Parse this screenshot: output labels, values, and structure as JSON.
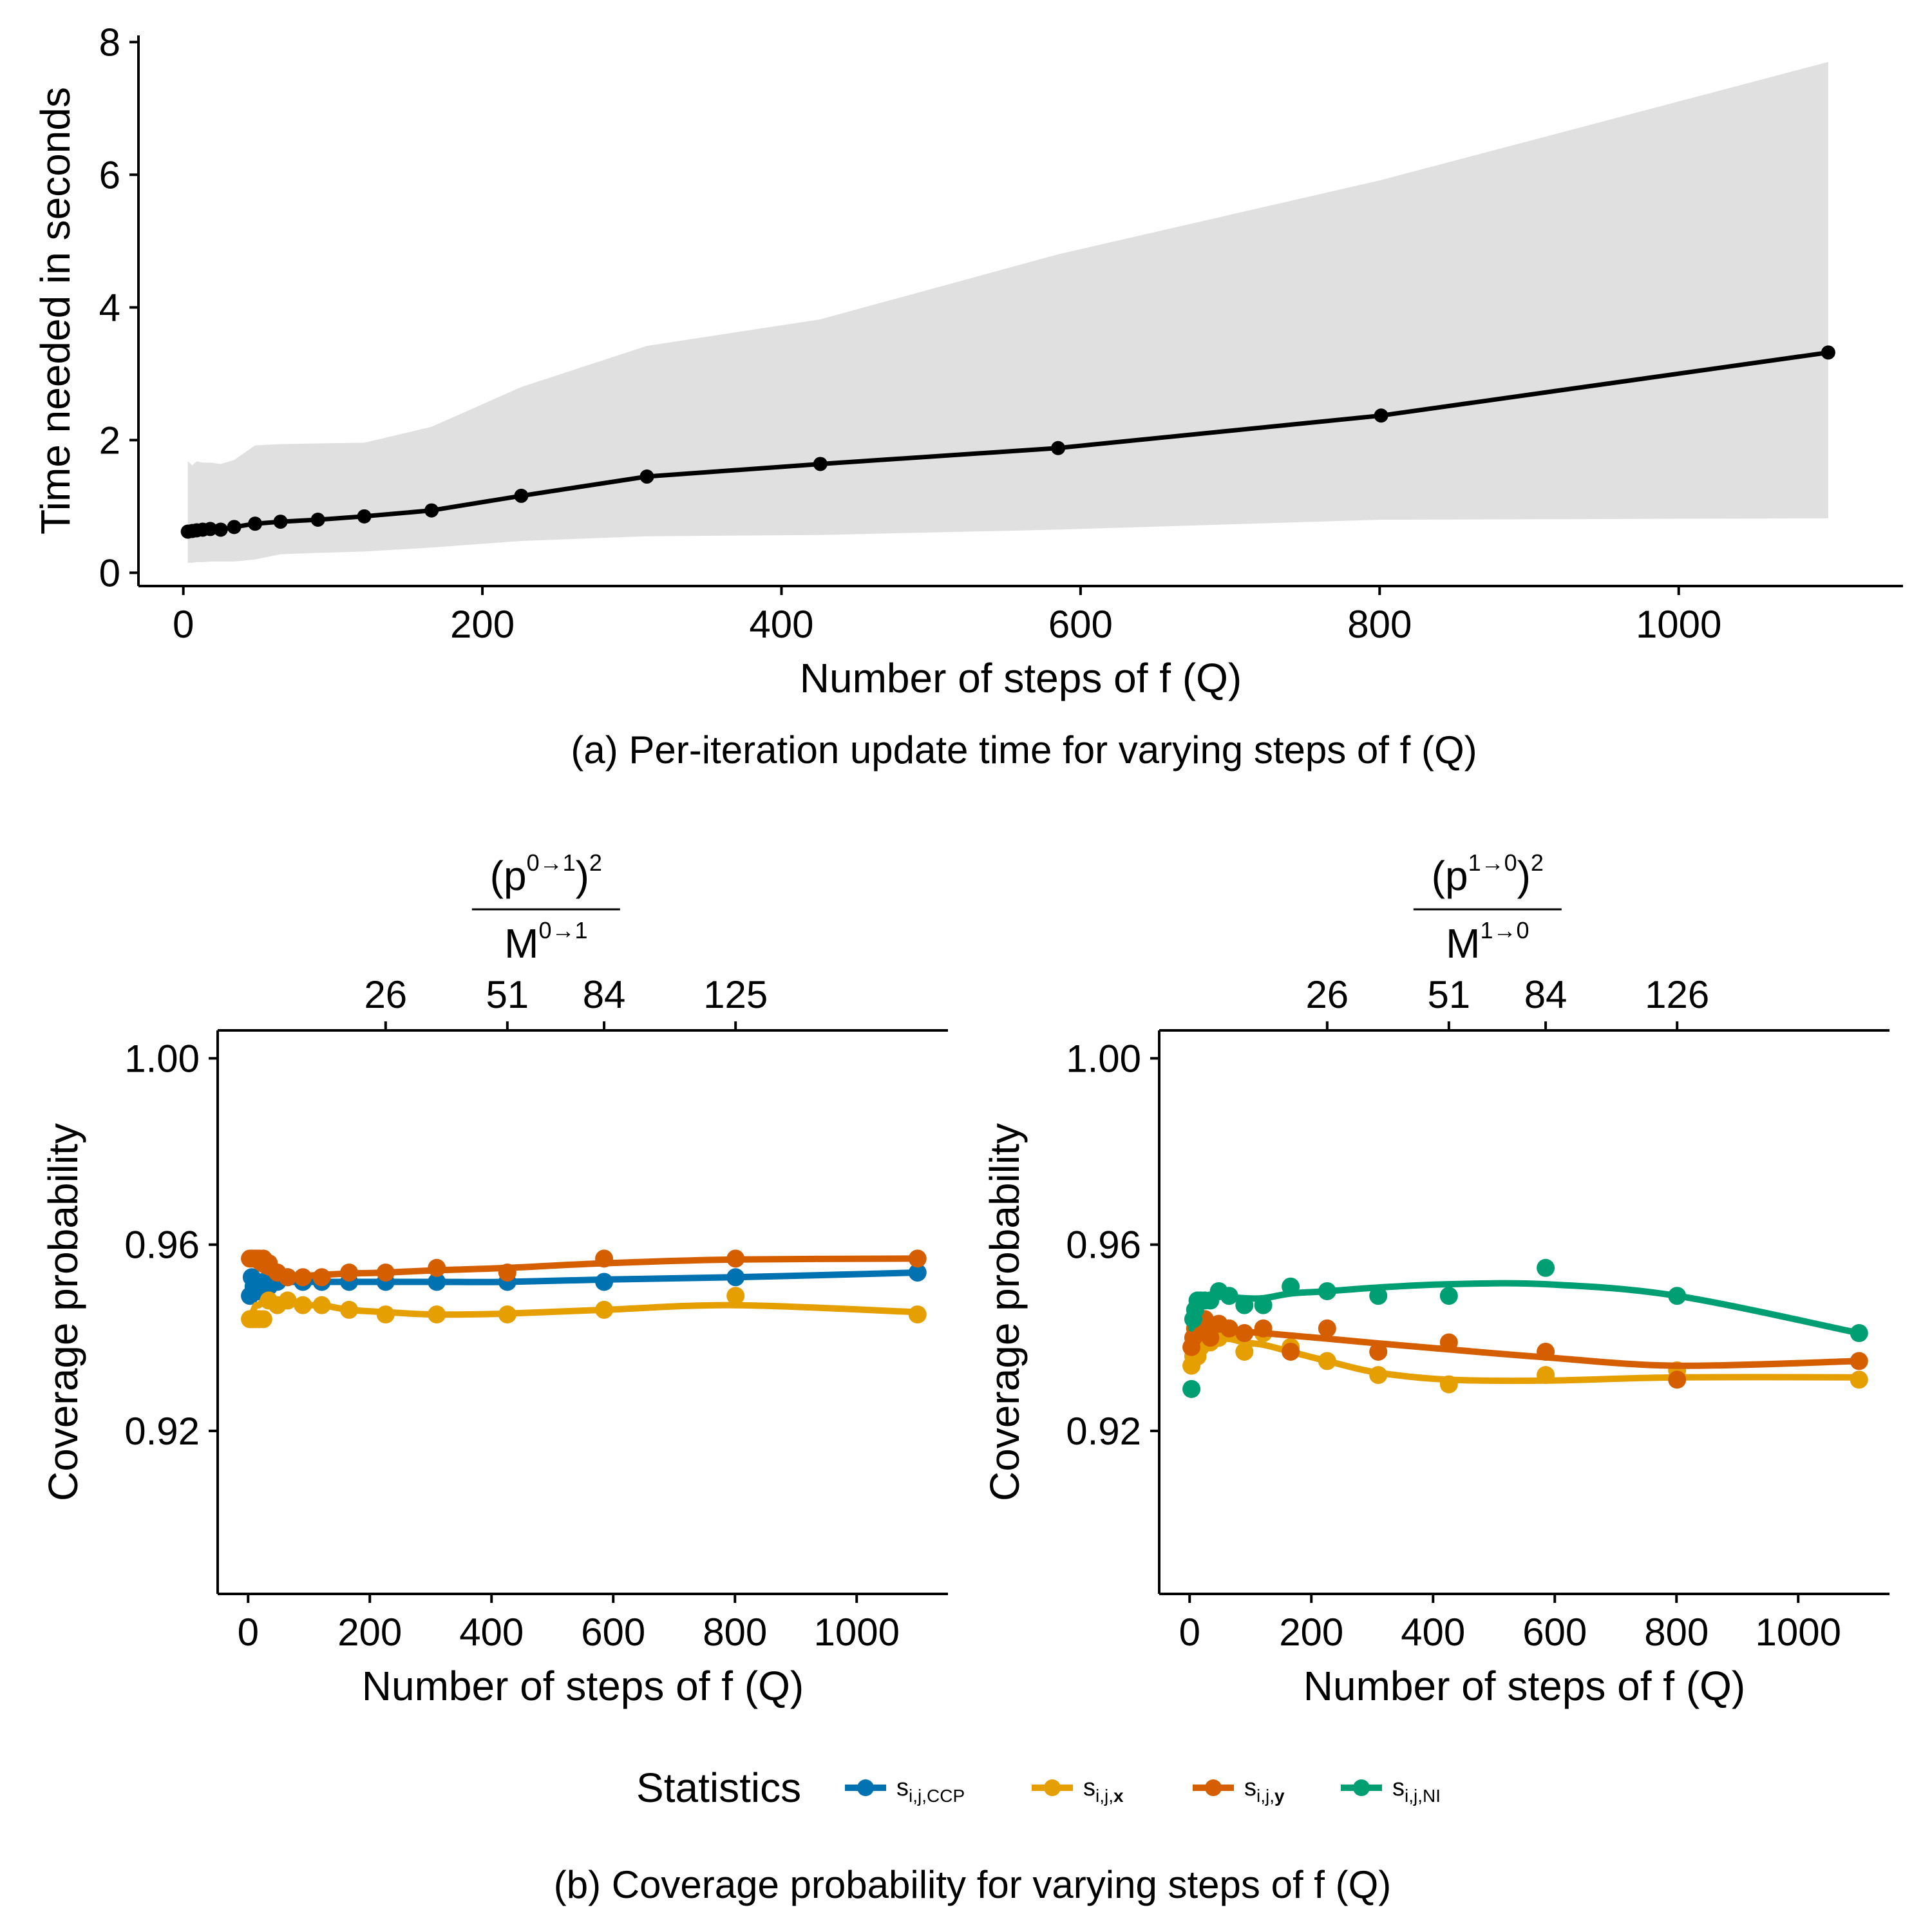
{
  "colors": {
    "ccp": "#0072B2",
    "x": "#E69F00",
    "y": "#D55E00",
    "ni": "#009E73",
    "line": "#000000",
    "ribbon": "#E0E0E0"
  },
  "chart_data": [
    {
      "id": "a",
      "type": "line",
      "xlabel": "Number of steps of f (Q)",
      "ylabel": "Time needed in seconds",
      "caption": "(a) Per-iteration update time for varying steps of f (Q)",
      "xlim": [
        -30,
        1150
      ],
      "ylim": [
        -0.2,
        8.1
      ],
      "xticks": [
        0,
        200,
        400,
        600,
        800,
        1000
      ],
      "yticks": [
        0,
        2,
        4,
        6,
        8
      ],
      "series": [
        {
          "name": "mean",
          "x": [
            3,
            6,
            9,
            13,
            18,
            25,
            34,
            48,
            65,
            90,
            121,
            166,
            226,
            310,
            426,
            585,
            801,
            1100
          ],
          "y": [
            0.62,
            0.63,
            0.64,
            0.65,
            0.66,
            0.65,
            0.69,
            0.74,
            0.77,
            0.8,
            0.85,
            0.94,
            1.16,
            1.45,
            1.64,
            1.88,
            2.37,
            3.32
          ]
        }
      ],
      "ribbon": {
        "x": [
          3,
          6,
          9,
          13,
          18,
          25,
          34,
          48,
          65,
          90,
          121,
          166,
          226,
          310,
          426,
          585,
          801,
          1100
        ],
        "lower": [
          0.15,
          0.15,
          0.16,
          0.16,
          0.17,
          0.17,
          0.17,
          0.2,
          0.28,
          0.3,
          0.32,
          0.38,
          0.48,
          0.55,
          0.57,
          0.65,
          0.8,
          0.82
        ],
        "upper": [
          1.68,
          1.62,
          1.68,
          1.66,
          1.66,
          1.64,
          1.7,
          1.92,
          1.94,
          1.95,
          1.96,
          2.2,
          2.8,
          3.42,
          3.82,
          4.8,
          5.92,
          7.7
        ]
      }
    },
    {
      "id": "b-left",
      "type": "scatter",
      "xlabel": "Number of steps of f (Q)",
      "ylabel": "Coverage probability",
      "top_axis_ticks": [
        "26",
        "51",
        "84",
        "125"
      ],
      "top_axis_ticks_x": [
        226,
        426,
        585,
        801
      ],
      "xlim": [
        -50,
        1150
      ],
      "ylim": [
        0.885,
        1.006
      ],
      "xticks": [
        0,
        200,
        400,
        600,
        800,
        1000
      ],
      "yticks": [
        1.0,
        0.96,
        0.92
      ],
      "ytick_labels": [
        "1.00",
        "0.96",
        "0.92"
      ],
      "series": [
        {
          "name": "ccp",
          "x": [
            3,
            6,
            9,
            13,
            18,
            25,
            34,
            48,
            65,
            90,
            121,
            166,
            226,
            310,
            426,
            585,
            801,
            1100
          ],
          "y": [
            0.949,
            0.953,
            0.951,
            0.952,
            0.95,
            0.952,
            0.951,
            0.952,
            0.953,
            0.952,
            0.952,
            0.952,
            0.952,
            0.952,
            0.952,
            0.952,
            0.953,
            0.954
          ],
          "fit": [
            0.951,
            0.951,
            0.952,
            0.952,
            0.952,
            0.952,
            0.952,
            0.952,
            0.952,
            0.952,
            0.952,
            0.952,
            0.952,
            0.952,
            0.952,
            0.9525,
            0.953,
            0.954
          ]
        },
        {
          "name": "x",
          "x": [
            3,
            6,
            9,
            13,
            18,
            25,
            34,
            48,
            65,
            90,
            121,
            166,
            226,
            310,
            426,
            585,
            801,
            1100
          ],
          "y": [
            0.944,
            0.944,
            0.944,
            0.944,
            0.944,
            0.944,
            0.948,
            0.947,
            0.948,
            0.947,
            0.947,
            0.946,
            0.945,
            0.945,
            0.945,
            0.946,
            0.949,
            0.945
          ],
          "fit": [
            0.944,
            0.945,
            0.946,
            0.947,
            0.947,
            0.948,
            0.948,
            0.948,
            0.948,
            0.947,
            0.947,
            0.946,
            0.9455,
            0.945,
            0.9452,
            0.946,
            0.947,
            0.9455
          ]
        },
        {
          "name": "y",
          "x": [
            3,
            6,
            9,
            13,
            18,
            25,
            34,
            48,
            65,
            90,
            121,
            166,
            226,
            310,
            426,
            585,
            801,
            1100
          ],
          "y": [
            0.957,
            0.957,
            0.957,
            0.957,
            0.957,
            0.957,
            0.956,
            0.954,
            0.953,
            0.953,
            0.953,
            0.954,
            0.954,
            0.955,
            0.954,
            0.957,
            0.957,
            0.957
          ],
          "fit": [
            0.957,
            0.9565,
            0.956,
            0.9555,
            0.955,
            0.9545,
            0.954,
            0.9535,
            0.9533,
            0.9533,
            0.9535,
            0.9538,
            0.954,
            0.9545,
            0.955,
            0.956,
            0.9568,
            0.957
          ]
        }
      ]
    },
    {
      "id": "b-right",
      "type": "scatter",
      "xlabel": "Number of steps of f (Q)",
      "ylabel": "Coverage probability",
      "top_axis_ticks": [
        "26",
        "51",
        "84",
        "126"
      ],
      "top_axis_ticks_x": [
        226,
        426,
        585,
        801
      ],
      "xlim": [
        -50,
        1150
      ],
      "ylim": [
        0.885,
        1.006
      ],
      "xticks": [
        0,
        200,
        400,
        600,
        800,
        1000
      ],
      "yticks": [
        1.0,
        0.96,
        0.92
      ],
      "ytick_labels": [
        "1.00",
        "0.96",
        "0.92"
      ],
      "series": [
        {
          "name": "x",
          "x": [
            3,
            6,
            9,
            13,
            18,
            25,
            34,
            48,
            65,
            90,
            121,
            166,
            226,
            310,
            426,
            585,
            801,
            1100
          ],
          "y": [
            0.934,
            0.936,
            0.937,
            0.936,
            0.938,
            0.939,
            0.939,
            0.94,
            0.941,
            0.937,
            0.941,
            0.938,
            0.935,
            0.932,
            0.93,
            0.932,
            0.933,
            0.931
          ],
          "fit": [
            0.935,
            0.936,
            0.937,
            0.938,
            0.939,
            0.9395,
            0.9398,
            0.94,
            0.9398,
            0.939,
            0.9385,
            0.937,
            0.935,
            0.9325,
            0.931,
            0.9308,
            0.9315,
            0.9315
          ]
        },
        {
          "name": "y",
          "x": [
            3,
            6,
            9,
            13,
            18,
            25,
            34,
            48,
            65,
            90,
            121,
            166,
            226,
            310,
            426,
            585,
            801,
            1100
          ],
          "y": [
            0.938,
            0.94,
            0.942,
            0.943,
            0.942,
            0.944,
            0.94,
            0.943,
            0.942,
            0.941,
            0.942,
            0.937,
            0.942,
            0.937,
            0.939,
            0.937,
            0.931,
            0.935
          ],
          "fit": [
            0.939,
            0.9405,
            0.9415,
            0.942,
            0.9422,
            0.9423,
            0.9422,
            0.942,
            0.9417,
            0.9413,
            0.941,
            0.9405,
            0.9398,
            0.9388,
            0.9375,
            0.9358,
            0.934,
            0.935
          ]
        },
        {
          "name": "ni",
          "x": [
            3,
            6,
            9,
            13,
            18,
            25,
            34,
            48,
            65,
            90,
            121,
            166,
            226,
            310,
            426,
            585,
            801,
            1100
          ],
          "y": [
            0.929,
            0.944,
            0.946,
            0.948,
            0.948,
            0.948,
            0.948,
            0.95,
            0.949,
            0.947,
            0.947,
            0.951,
            0.95,
            0.949,
            0.949,
            0.955,
            0.949,
            0.941
          ],
          "fit": [
            0.942,
            0.944,
            0.945,
            0.946,
            0.947,
            0.948,
            0.9485,
            0.949,
            0.9488,
            0.9485,
            0.9485,
            0.9495,
            0.95,
            0.9508,
            0.9515,
            0.9515,
            0.949,
            0.941
          ]
        }
      ]
    }
  ],
  "caption_b": "(b) Coverage probability for varying steps of f (Q)",
  "legend": {
    "title": "Statistics",
    "items": [
      {
        "key": "ccp",
        "base": "s",
        "sub": "i,j,CCP",
        "bold": false
      },
      {
        "key": "x",
        "base": "s",
        "sub": "i,j,x",
        "bold": true
      },
      {
        "key": "y",
        "base": "s",
        "sub": "i,j,y",
        "bold": true
      },
      {
        "key": "ni",
        "base": "s",
        "sub": "i,j,NI",
        "bold": false
      }
    ]
  },
  "top_axis_titles": {
    "left": {
      "base": "p",
      "sup": "0→1",
      "square": "2",
      "denom": "M",
      "denom_sup": "0→1"
    },
    "right": {
      "base": "p",
      "sup": "1→0",
      "square": "2",
      "denom": "M",
      "denom_sup": "1→0"
    }
  }
}
